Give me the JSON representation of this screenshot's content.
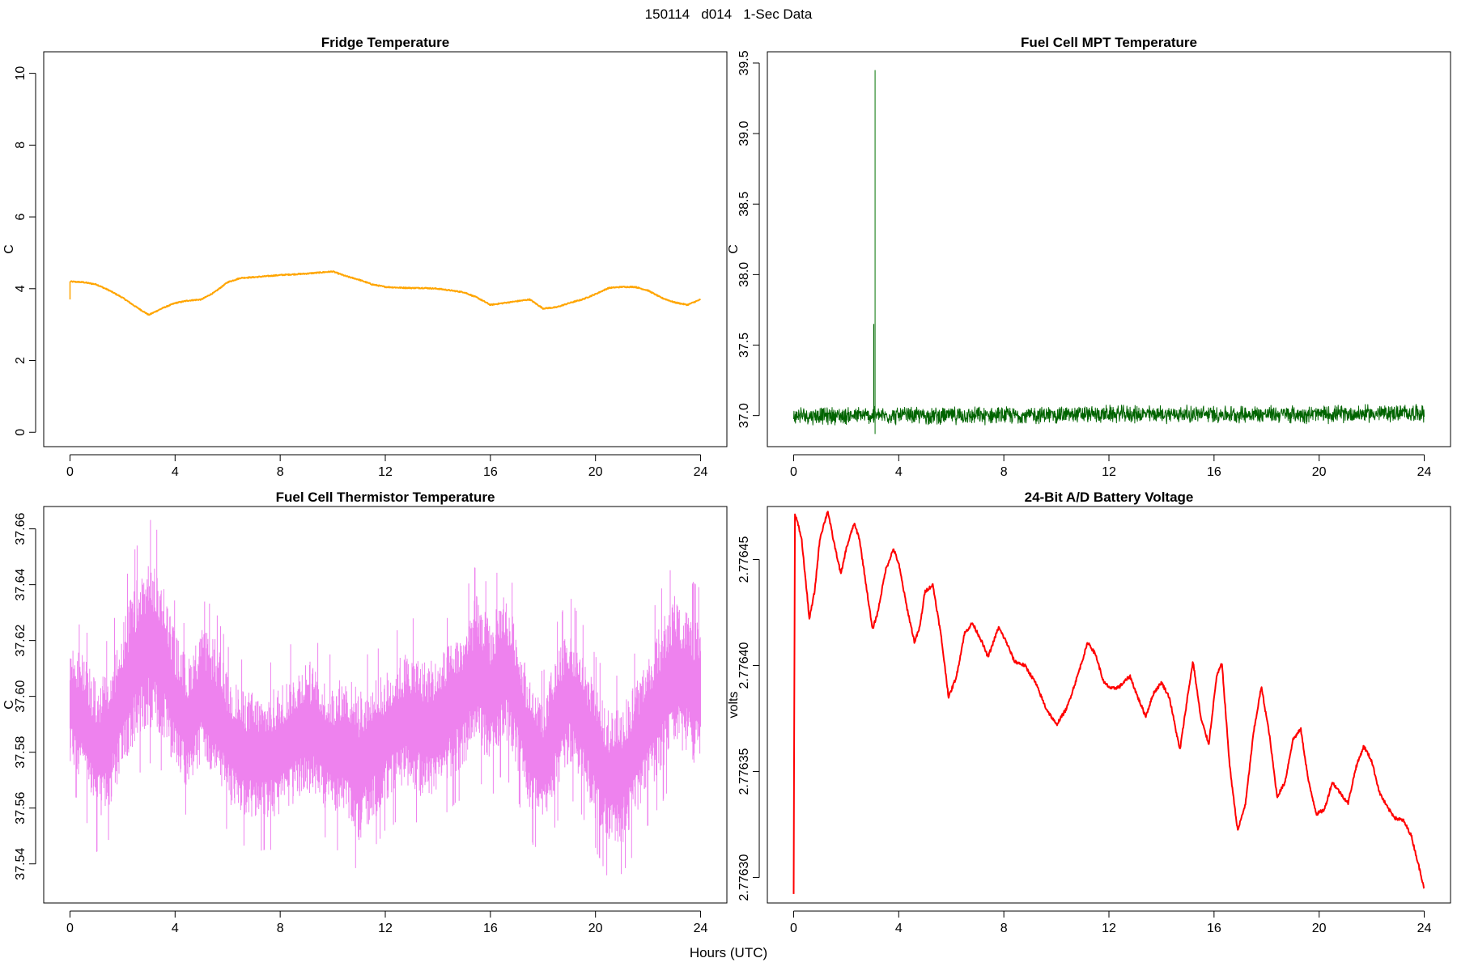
{
  "figure": {
    "main_title": "150114   d014   1-Sec Data",
    "x_axis_title": "Hours (UTC)"
  },
  "chart_data": [
    {
      "type": "line",
      "title": "Fridge Temperature",
      "xlabel": "",
      "ylabel": "C",
      "xlim": [
        -1,
        25
      ],
      "ylim": [
        -0.4,
        10.6
      ],
      "x_ticks": [
        0,
        4,
        8,
        12,
        16,
        20,
        24
      ],
      "y_ticks": [
        0,
        2,
        4,
        6,
        8,
        10
      ],
      "y_tick_labels": [
        "0",
        "2",
        "4",
        "6",
        "8",
        "10"
      ],
      "grid": false,
      "color": "#FFA500",
      "noise": 0.015,
      "series": [
        {
          "x": [
            0,
            0.5,
            1,
            1.5,
            2,
            2.5,
            3,
            3.5,
            4,
            4.5,
            5,
            5.5,
            6,
            6.5,
            7,
            7.5,
            8,
            8.5,
            9,
            9.5,
            10,
            10.5,
            11,
            11.5,
            12,
            12.5,
            13,
            13.5,
            14,
            14.5,
            15,
            15.5,
            16,
            16.5,
            17,
            17.5,
            18,
            18.5,
            19,
            19.5,
            20,
            20.5,
            21,
            21.5,
            22,
            22.5,
            23,
            23.5,
            24
          ],
          "y": [
            4.2,
            4.18,
            4.12,
            3.95,
            3.75,
            3.5,
            3.27,
            3.45,
            3.6,
            3.67,
            3.7,
            3.9,
            4.18,
            4.3,
            4.32,
            4.35,
            4.38,
            4.4,
            4.42,
            4.45,
            4.48,
            4.35,
            4.25,
            4.12,
            4.05,
            4.03,
            4.02,
            4.02,
            4.0,
            3.95,
            3.9,
            3.75,
            3.55,
            3.6,
            3.65,
            3.7,
            3.45,
            3.48,
            3.6,
            3.7,
            3.85,
            4.02,
            4.05,
            4.05,
            3.95,
            3.75,
            3.62,
            3.55,
            3.7
          ]
        }
      ]
    },
    {
      "type": "line",
      "title": "Fuel Cell MPT Temperature",
      "xlabel": "",
      "ylabel": "C",
      "xlim": [
        -1,
        25
      ],
      "ylim": [
        36.78,
        39.58
      ],
      "x_ticks": [
        0,
        4,
        8,
        12,
        16,
        20,
        24
      ],
      "y_ticks": [
        37.0,
        37.5,
        38.0,
        38.5,
        39.0,
        39.5
      ],
      "y_tick_labels": [
        "37.0",
        "37.5",
        "38.0",
        "38.5",
        "39.0",
        "39.5"
      ],
      "grid": false,
      "color": "#006400",
      "noise": 0.05,
      "spikes": [
        {
          "x": 3.1,
          "low": 36.87,
          "high": 39.45
        },
        {
          "x": 3.05,
          "low": 36.95,
          "high": 37.65
        }
      ],
      "series": [
        {
          "x": [
            0,
            4,
            8,
            12,
            16,
            20,
            24
          ],
          "y": [
            37.0,
            37.0,
            37.0,
            37.01,
            37.01,
            37.01,
            37.02
          ]
        }
      ]
    },
    {
      "type": "line",
      "title": "Fuel Cell Thermistor Temperature",
      "xlabel": "",
      "ylabel": "C",
      "xlim": [
        -1,
        25
      ],
      "ylim": [
        37.526,
        37.668
      ],
      "x_ticks": [
        0,
        4,
        8,
        12,
        16,
        20,
        24
      ],
      "y_ticks": [
        37.54,
        37.56,
        37.58,
        37.6,
        37.62,
        37.64,
        37.66
      ],
      "y_tick_labels": [
        "37.54",
        "37.56",
        "37.58",
        "37.60",
        "37.62",
        "37.64",
        "37.66"
      ],
      "grid": false,
      "color": "#EE82EE",
      "band_dense": true,
      "series": [
        {
          "x": [
            0,
            0.5,
            1,
            1.5,
            2,
            2.5,
            3,
            3.5,
            4,
            4.5,
            5,
            5.5,
            6,
            6.5,
            7,
            7.5,
            8,
            8.5,
            9,
            9.5,
            10,
            10.5,
            11,
            11.5,
            12,
            12.5,
            13,
            13.5,
            14,
            14.5,
            15,
            15.5,
            16,
            16.5,
            17,
            17.5,
            18,
            18.5,
            19,
            19.5,
            20,
            20.5,
            21,
            21.5,
            22,
            22.5,
            23,
            23.5,
            24
          ],
          "y": [
            37.598,
            37.592,
            37.58,
            37.585,
            37.6,
            37.612,
            37.62,
            37.615,
            37.598,
            37.59,
            37.6,
            37.596,
            37.585,
            37.58,
            37.578,
            37.578,
            37.58,
            37.585,
            37.59,
            37.585,
            37.58,
            37.582,
            37.575,
            37.58,
            37.585,
            37.59,
            37.592,
            37.588,
            37.59,
            37.595,
            37.6,
            37.61,
            37.6,
            37.612,
            37.6,
            37.582,
            37.575,
            37.59,
            37.6,
            37.592,
            37.58,
            37.57,
            37.572,
            37.58,
            37.59,
            37.6,
            37.61,
            37.605,
            37.6
          ],
          "amp": [
            0.022,
            0.024,
            0.026,
            0.026,
            0.028,
            0.03,
            0.032,
            0.03,
            0.026,
            0.024,
            0.025,
            0.026,
            0.024,
            0.024,
            0.024,
            0.024,
            0.025,
            0.025,
            0.025,
            0.024,
            0.025,
            0.027,
            0.028,
            0.026,
            0.024,
            0.025,
            0.026,
            0.026,
            0.025,
            0.025,
            0.026,
            0.028,
            0.027,
            0.028,
            0.026,
            0.024,
            0.024,
            0.026,
            0.026,
            0.025,
            0.025,
            0.026,
            0.026,
            0.026,
            0.026,
            0.028,
            0.028,
            0.027,
            0.028
          ]
        }
      ]
    },
    {
      "type": "line",
      "title": "24-Bit A/D Battery Voltage",
      "xlabel": "",
      "ylabel": "volts",
      "xlim": [
        -1,
        25
      ],
      "ylim": [
        2.776288,
        2.776475
      ],
      "x_ticks": [
        0,
        4,
        8,
        12,
        16,
        20,
        24
      ],
      "y_ticks": [
        2.7763,
        2.77635,
        2.7764,
        2.77645
      ],
      "y_tick_labels": [
        "2.77630",
        "2.77635",
        "2.77640",
        "2.77645"
      ],
      "grid": false,
      "color": "#FF0000",
      "noise": 8e-07,
      "series": [
        {
          "x": [
            0,
            0.05,
            0.3,
            0.6,
            0.8,
            1.0,
            1.3,
            1.5,
            1.8,
            2.0,
            2.3,
            2.5,
            2.7,
            3.0,
            3.2,
            3.5,
            3.8,
            4.0,
            4.3,
            4.6,
            4.8,
            5.0,
            5.3,
            5.6,
            5.9,
            6.2,
            6.5,
            6.8,
            7.1,
            7.4,
            7.8,
            8.1,
            8.4,
            8.8,
            9.2,
            9.6,
            10.0,
            10.4,
            10.8,
            11.2,
            11.5,
            11.8,
            12.1,
            12.4,
            12.8,
            13.1,
            13.4,
            13.7,
            14.0,
            14.3,
            14.7,
            15.0,
            15.2,
            15.5,
            15.8,
            16.1,
            16.3,
            16.6,
            16.9,
            17.2,
            17.5,
            17.8,
            18.1,
            18.4,
            18.7,
            19.0,
            19.3,
            19.6,
            19.9,
            20.2,
            20.5,
            20.8,
            21.1,
            21.4,
            21.7,
            22.0,
            22.3,
            22.6,
            22.9,
            23.2,
            23.5,
            23.8,
            24.0
          ],
          "y": [
            2.776293,
            2.776472,
            2.77646,
            2.776422,
            2.776435,
            2.77646,
            2.776473,
            2.77646,
            2.776443,
            2.776455,
            2.776467,
            2.77646,
            2.776443,
            2.776417,
            2.776425,
            2.776445,
            2.776455,
            2.776448,
            2.776428,
            2.776411,
            2.776418,
            2.776435,
            2.776438,
            2.776415,
            2.776385,
            2.776395,
            2.776415,
            2.77642,
            2.776413,
            2.776404,
            2.776418,
            2.776411,
            2.776402,
            2.7764,
            2.776392,
            2.77638,
            2.776372,
            2.77638,
            2.776395,
            2.776411,
            2.776405,
            2.776392,
            2.776389,
            2.77639,
            2.776395,
            2.776385,
            2.776376,
            2.776387,
            2.776392,
            2.776385,
            2.77636,
            2.776386,
            2.776402,
            2.776375,
            2.776363,
            2.776395,
            2.776401,
            2.776352,
            2.776322,
            2.776335,
            2.776368,
            2.77639,
            2.776368,
            2.776338,
            2.776345,
            2.776365,
            2.77637,
            2.776345,
            2.77633,
            2.776332,
            2.776345,
            2.77634,
            2.776335,
            2.776352,
            2.776362,
            2.776355,
            2.77634,
            2.776333,
            2.776328,
            2.776327,
            2.77632,
            2.776305,
            2.776295
          ]
        }
      ]
    }
  ]
}
